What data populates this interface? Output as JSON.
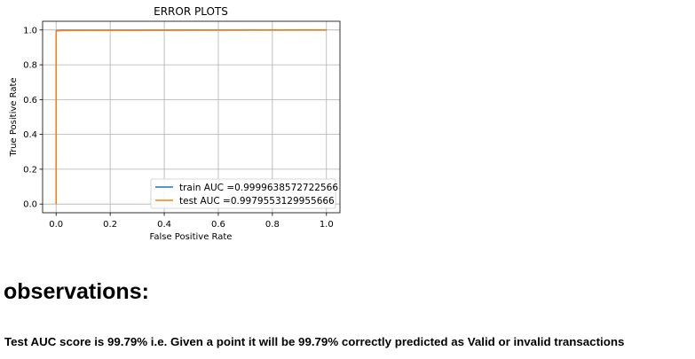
{
  "chart_data": {
    "type": "line",
    "title": "ERROR PLOTS",
    "xlabel": "False Positive Rate",
    "ylabel": "True Positive Rate",
    "xlim": [
      -0.05,
      1.05
    ],
    "ylim": [
      -0.05,
      1.05
    ],
    "xticks": [
      0.0,
      0.2,
      0.4,
      0.6,
      0.8,
      1.0
    ],
    "yticks": [
      0.0,
      0.2,
      0.4,
      0.6,
      0.8,
      1.0
    ],
    "xtick_labels": [
      "0.0",
      "0.2",
      "0.4",
      "0.6",
      "0.8",
      "1.0"
    ],
    "ytick_labels": [
      "0.0",
      "0.2",
      "0.4",
      "0.6",
      "0.8",
      "1.0"
    ],
    "grid": true,
    "legend_position": "lower-right",
    "series": [
      {
        "name": "train AUC =0.9999638572722566",
        "color": "#1f77b4",
        "x": [
          0.0,
          0.0,
          0.003,
          0.02,
          1.0
        ],
        "y": [
          0.0,
          0.992,
          0.997,
          0.999,
          1.0
        ]
      },
      {
        "name": "test AUC =0.9979553129955666",
        "color": "#ff7f0e",
        "x": [
          0.0,
          0.0,
          0.004,
          0.03,
          1.0
        ],
        "y": [
          0.0,
          0.99,
          0.995,
          0.997,
          1.0
        ]
      }
    ]
  },
  "observations": {
    "heading": "observations:",
    "text": "Test AUC score is 99.79% i.e. Given a point it will be 99.79% correctly predicted as Valid or invalid transactions"
  }
}
